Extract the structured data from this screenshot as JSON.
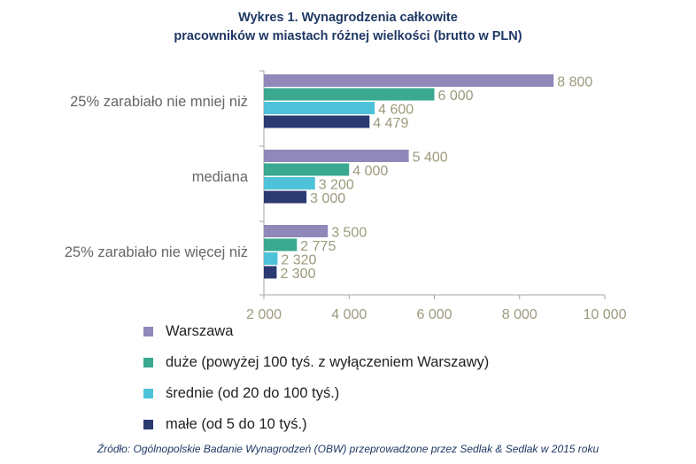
{
  "title": {
    "line1": "Wykres 1. Wynagrodzenia całkowite",
    "line2": "pracowników  w miastach różnej wielkości (brutto w PLN)"
  },
  "chart_data": {
    "type": "bar",
    "orientation": "horizontal",
    "title": "Wykres 1. Wynagrodzenia całkowite pracowników  w miastach różnej wielkości (brutto w PLN)",
    "categories": [
      "25% zarabiało nie mniej niż",
      "mediana",
      "25% zarabiało nie więcej niż"
    ],
    "series": [
      {
        "name": "Warszawa",
        "color": "#8f88b8",
        "values": [
          8800,
          5400,
          3500
        ],
        "labels": [
          "8 800",
          "5 400",
          "3 500"
        ]
      },
      {
        "name": "duże (powyżej 100 tyś. z wyłączeniem Warszawy)",
        "color": "#3aa98f",
        "values": [
          6000,
          4000,
          2775
        ],
        "labels": [
          "6 000",
          "4 000",
          "2 775"
        ]
      },
      {
        "name": "średnie (od 20 do 100 tyś.)",
        "color": "#4dc2d8",
        "values": [
          4600,
          3200,
          2320
        ],
        "labels": [
          "4 600",
          "3 200",
          "2 320"
        ]
      },
      {
        "name": "małe (od 5 do 10 tyś.)",
        "color": "#2c3a72",
        "values": [
          4479,
          3000,
          2300
        ],
        "labels": [
          "4 479",
          "3 000",
          "2 300"
        ]
      }
    ],
    "xlim": [
      2000,
      10000
    ],
    "xticks": [
      2000,
      4000,
      6000,
      8000,
      10000
    ],
    "xtick_labels": [
      "2 000",
      "4 000",
      "6 000",
      "8 000",
      "10 000"
    ],
    "grid": false,
    "legend_position": "bottom",
    "colors": {
      "value_label": "#9c9a7c",
      "category_label": "#666666",
      "axis": "#a6a6a6"
    }
  },
  "source": "Źródło: Ogólnopolskie Badanie Wynagrodzeń (OBW) przeprowadzone przez Sedlak & Sedlak w 2015 roku"
}
